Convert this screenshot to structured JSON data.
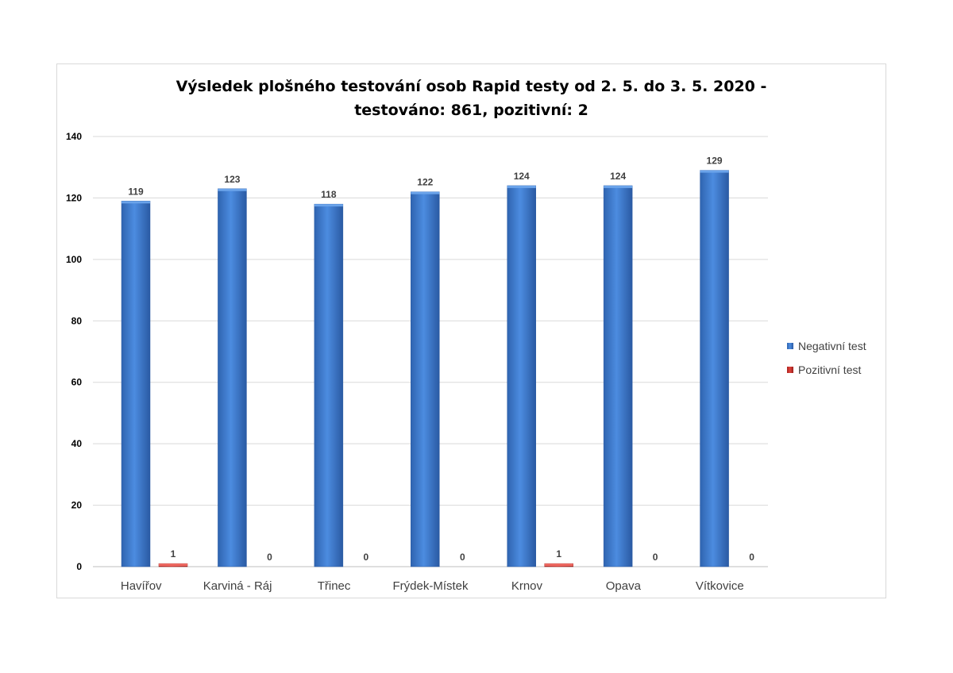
{
  "chart_data": {
    "type": "bar",
    "title_lines": [
      "Výsledek plošného testování osob Rapid testy od 2. 5. do 3. 5. 2020 -",
      "testováno: 861, pozitivní: 2"
    ],
    "categories": [
      "Havířov",
      "Karviná - Ráj",
      "Třinec",
      "Frýdek-Místek",
      "Krnov",
      "Opava",
      "Vítkovice"
    ],
    "series": [
      {
        "name": "Negativní test",
        "color": "#3a77cc",
        "values": [
          119,
          123,
          118,
          122,
          124,
          124,
          129
        ]
      },
      {
        "name": "Pozitivní test",
        "color": "#c0302b",
        "values": [
          1,
          0,
          0,
          0,
          1,
          0,
          0
        ]
      }
    ],
    "ylim": [
      0,
      140
    ],
    "yticks": [
      0,
      20,
      40,
      60,
      80,
      100,
      120,
      140
    ],
    "grid": true,
    "legend_position": "right",
    "data_labels": true
  }
}
